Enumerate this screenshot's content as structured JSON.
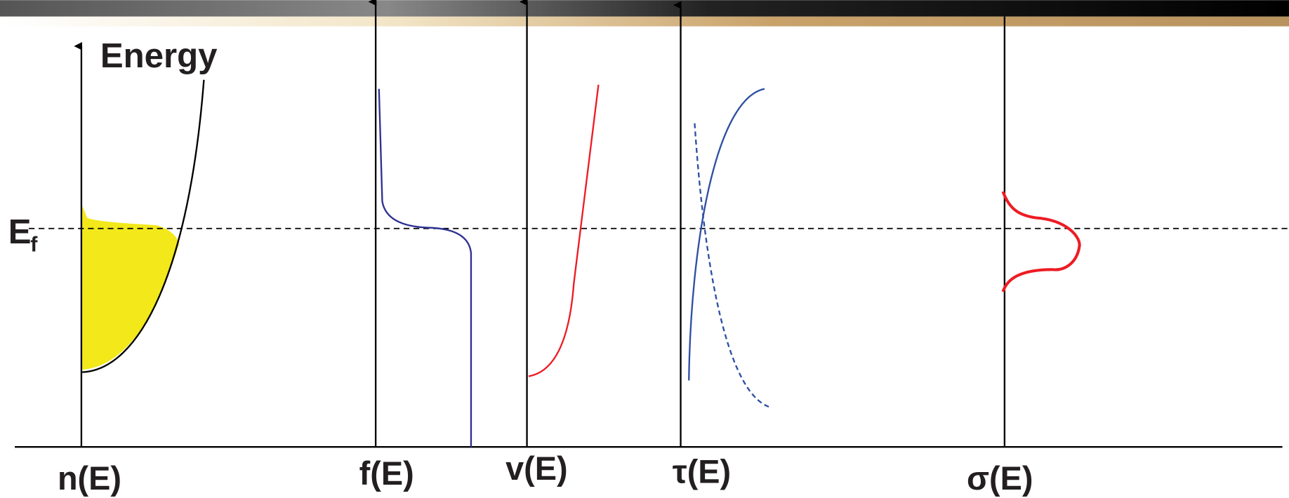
{
  "labels": {
    "energy": "Energy",
    "fermi": "E",
    "fermi_sub": "f"
  },
  "axes": [
    {
      "label": "n(E)"
    },
    {
      "label": "f(E)"
    },
    {
      "label": "v(E)"
    },
    {
      "label": "τ(E)"
    },
    {
      "label": "σ(E)"
    }
  ]
}
